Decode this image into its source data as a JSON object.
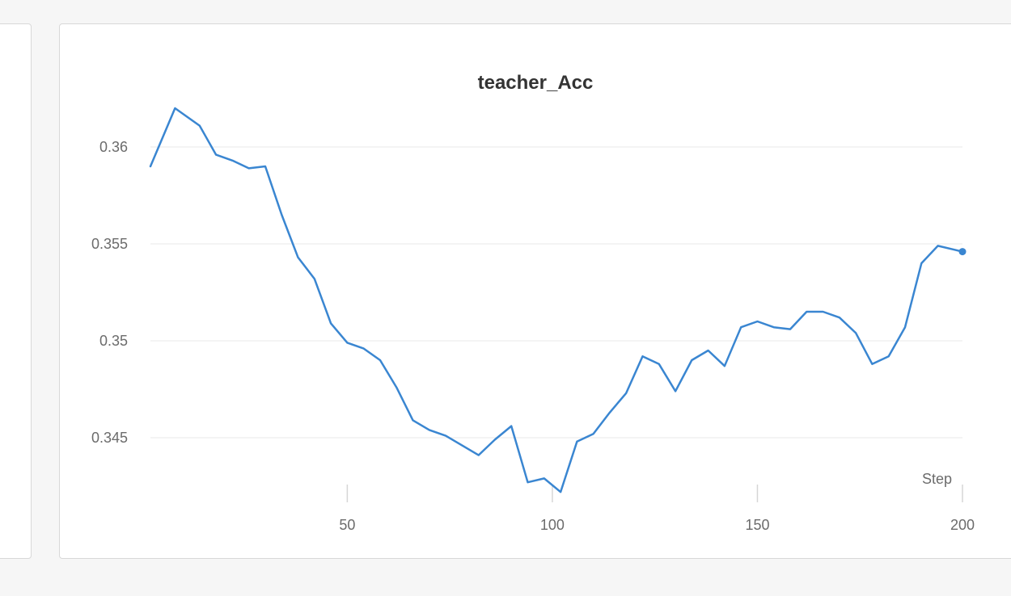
{
  "chart_data": {
    "type": "line",
    "title": "teacher_Acc",
    "xlabel": "Step",
    "ylabel": "",
    "xlim": [
      2,
      200
    ],
    "ylim": [
      0.3422,
      0.3632
    ],
    "x_ticks": [
      50,
      100,
      150,
      200
    ],
    "y_ticks": [
      0.345,
      0.35,
      0.355,
      0.36
    ],
    "x_tick_labels": [
      "50",
      "100",
      "150",
      "200"
    ],
    "y_tick_labels": [
      "0.345",
      "0.35",
      "0.355",
      "0.36"
    ],
    "grid": "horizontal",
    "series": [
      {
        "color": "#3a86d1",
        "x": [
          2,
          8,
          14,
          18,
          22,
          26,
          30,
          34,
          38,
          42,
          46,
          50,
          54,
          58,
          62,
          66,
          70,
          74,
          78,
          82,
          86,
          90,
          94,
          98,
          102,
          106,
          110,
          114,
          118,
          122,
          126,
          130,
          134,
          138,
          142,
          146,
          150,
          154,
          158,
          162,
          166,
          170,
          174,
          178,
          182,
          186,
          190,
          194,
          198,
          200
        ],
        "values": [
          0.359,
          0.362,
          0.3611,
          0.3596,
          0.3593,
          0.3589,
          0.359,
          0.3565,
          0.3543,
          0.3532,
          0.3509,
          0.3499,
          0.3496,
          0.349,
          0.3476,
          0.3459,
          0.3454,
          0.3451,
          0.3446,
          0.3441,
          0.3449,
          0.3456,
          0.3427,
          0.3429,
          0.3422,
          0.3448,
          0.3452,
          0.3463,
          0.3473,
          0.3492,
          0.3488,
          0.3474,
          0.349,
          0.3495,
          0.3487,
          0.3507,
          0.351,
          0.3507,
          0.3506,
          0.3515,
          0.3515,
          0.3512,
          0.3504,
          0.3488,
          0.3492,
          0.3507,
          0.354,
          0.3549,
          0.3547,
          0.3546
        ]
      }
    ]
  }
}
